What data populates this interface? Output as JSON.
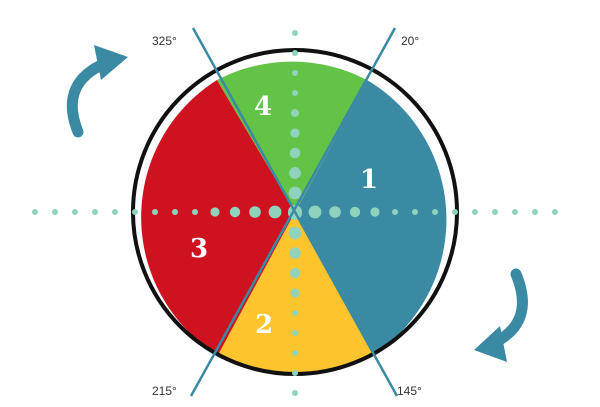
{
  "angle_labels": {
    "top_left": "325°",
    "top_right": "20°",
    "bottom_left": "215°",
    "bottom_right": "145°"
  },
  "sectors": [
    {
      "number": "1",
      "color": "#3a8aa3"
    },
    {
      "number": "2",
      "color": "#fdc42d"
    },
    {
      "number": "3",
      "color": "#cf1220"
    },
    {
      "number": "4",
      "color": "#63c347"
    }
  ],
  "colors": {
    "outline": "#111111",
    "axis_line": "#3a8aa3",
    "dots": "#8fd3bd",
    "arrows": "#3a8aa3"
  },
  "icons": {
    "top_left": "clockwise-arrow-icon",
    "bottom_right": "clockwise-arrow-icon"
  }
}
